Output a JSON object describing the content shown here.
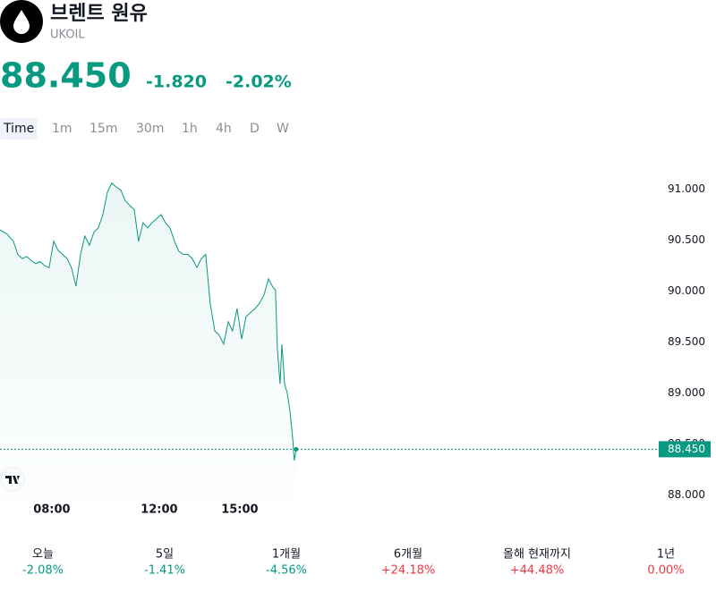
{
  "header": {
    "title": "브렌트 원유",
    "symbol": "UKOIL",
    "price": "88.450",
    "change": "-1.820",
    "change_percent": "-2.02%"
  },
  "timeframes": [
    "Time",
    "1m",
    "15m",
    "30m",
    "1h",
    "4h",
    "D",
    "W"
  ],
  "chart_data": {
    "type": "line",
    "color": "#089981",
    "x": [
      6.07,
      6.33,
      6.57,
      6.73,
      6.9,
      7.07,
      7.23,
      7.4,
      7.57,
      7.73,
      7.9,
      8.07,
      8.23,
      8.4,
      8.57,
      8.73,
      8.9,
      9.07,
      9.23,
      9.4,
      9.57,
      9.73,
      9.9,
      10.07,
      10.23,
      10.4,
      10.57,
      10.73,
      10.9,
      11.07,
      11.23,
      11.4,
      11.57,
      11.73,
      11.9,
      12.07,
      12.23,
      12.4,
      12.57,
      12.73,
      12.9,
      13.07,
      13.23,
      13.4,
      13.57,
      13.73,
      13.9,
      14.07,
      14.23,
      14.4,
      14.57,
      14.73,
      14.9,
      15.07,
      15.23,
      15.4,
      15.57,
      15.73,
      15.9,
      16.07,
      16.23,
      16.33,
      16.4,
      16.5,
      16.57,
      16.67,
      16.77,
      16.87,
      16.97,
      17.03,
      17.1
    ],
    "values": [
      90.6,
      90.56,
      90.49,
      90.36,
      90.32,
      90.34,
      90.3,
      90.27,
      90.29,
      90.25,
      90.23,
      90.49,
      90.4,
      90.36,
      90.32,
      90.23,
      90.05,
      90.36,
      90.54,
      90.45,
      90.58,
      90.62,
      90.75,
      90.97,
      91.06,
      91.02,
      90.99,
      90.89,
      90.84,
      90.8,
      90.49,
      90.67,
      90.62,
      90.67,
      90.71,
      90.75,
      90.67,
      90.62,
      90.49,
      90.39,
      90.36,
      90.36,
      90.32,
      90.23,
      90.32,
      90.36,
      89.88,
      89.61,
      89.57,
      89.48,
      89.7,
      89.61,
      89.83,
      89.53,
      89.75,
      89.79,
      89.83,
      89.88,
      89.96,
      90.12,
      90.04,
      90.01,
      89.44,
      89.09,
      89.48,
      89.09,
      89.0,
      88.82,
      88.56,
      88.34,
      88.45
    ],
    "xlim": [
      6.07,
      30.57
    ],
    "xticks": [
      {
        "value": 8,
        "label": "08:00"
      },
      {
        "value": 12,
        "label": "12:00"
      },
      {
        "value": 15,
        "label": "15:00"
      }
    ],
    "ylim": [
      87.98,
      91.32
    ],
    "yticks": [
      {
        "value": 88,
        "label": "88.000"
      },
      {
        "value": 88.5,
        "label": "88.500"
      },
      {
        "value": 89,
        "label": "89.000"
      },
      {
        "value": 89.5,
        "label": "89.500"
      },
      {
        "value": 90,
        "label": "90.000"
      },
      {
        "value": 90.5,
        "label": "90.500"
      },
      {
        "value": 91,
        "label": "91.000"
      }
    ]
  },
  "performance": [
    {
      "period": "오늘",
      "value": "-2.08%",
      "color": "#089981"
    },
    {
      "period": "5일",
      "value": "-1.41%",
      "color": "#089981"
    },
    {
      "period": "1개월",
      "value": "-4.56%",
      "color": "#089981"
    },
    {
      "period": "6개월",
      "value": "+24.18%",
      "color": "#f23645"
    },
    {
      "period": "올해 현재까지",
      "value": "+44.48%",
      "color": "#f23645"
    },
    {
      "period": "1년",
      "value": "0.00%",
      "color": "#f23645"
    }
  ]
}
